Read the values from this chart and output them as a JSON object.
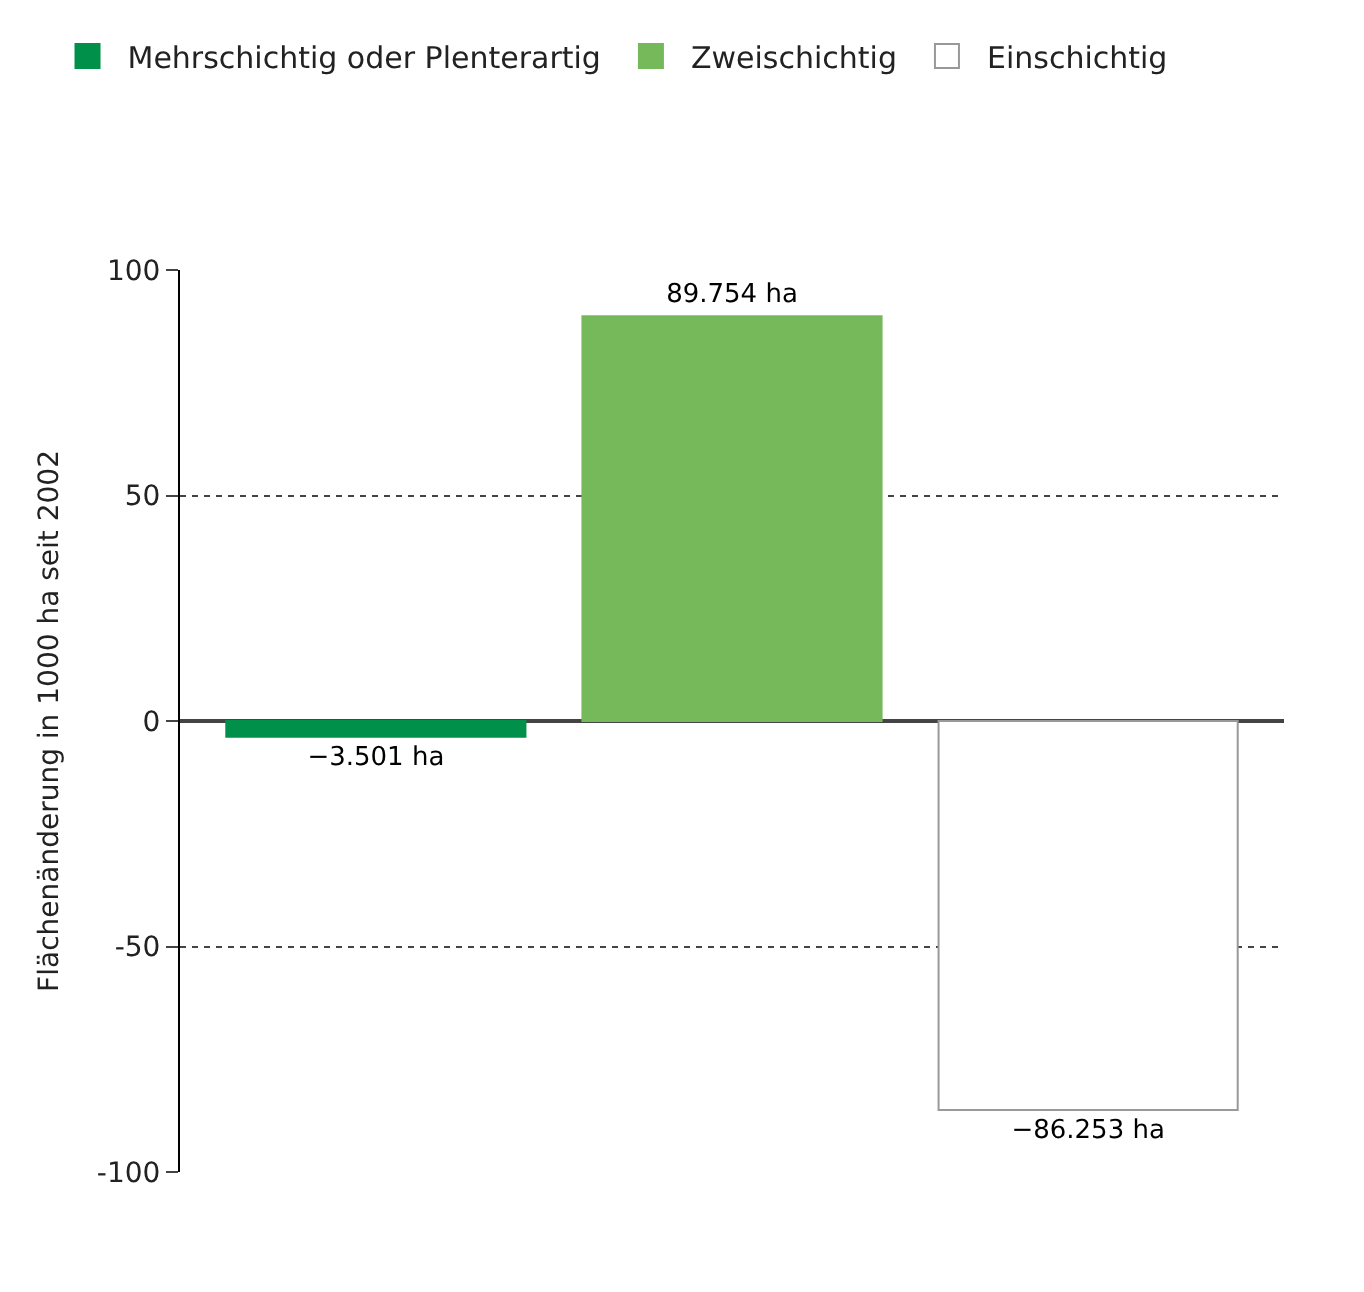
{
  "chart_data": {
    "type": "bar",
    "ylabel": "Flächenänderung in 1000 ha seit 2002",
    "categories": [
      null,
      null,
      null
    ],
    "series": [
      {
        "name": "Mehrschichtig oder Plenterartig",
        "color": "#00904a",
        "values": [
          -3.501,
          null,
          null
        ],
        "value_labels": [
          "−3.501 ha",
          null,
          null
        ]
      },
      {
        "name": "Zweischichtig",
        "color": "#75b95a",
        "values": [
          null,
          89.754,
          null
        ],
        "value_labels": [
          null,
          "89.754 ha",
          null
        ]
      },
      {
        "name": "Einschichtig",
        "color": "#ffffff",
        "values": [
          null,
          null,
          -86.253
        ],
        "value_labels": [
          null,
          null,
          "−86.253 ha"
        ]
      }
    ],
    "ylim": [
      -100,
      100
    ],
    "yticks": [
      -100,
      -50,
      0,
      50,
      100
    ],
    "grid": "y",
    "legend": "top left"
  }
}
